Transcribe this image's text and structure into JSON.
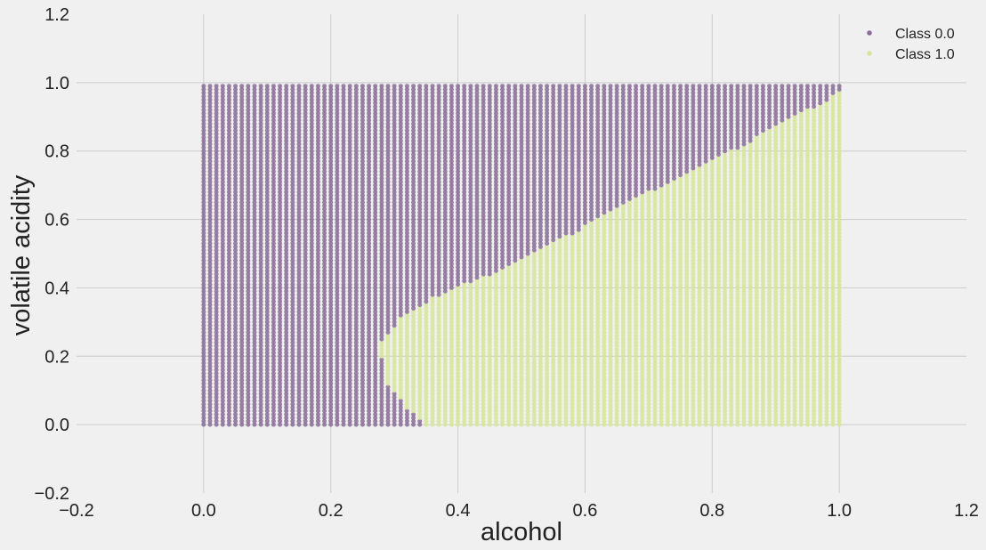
{
  "chart_data": {
    "type": "scatter",
    "title": "",
    "xlabel": "alcohol",
    "ylabel": "volatile acidity",
    "xlim": [
      -0.2,
      1.2
    ],
    "ylim": [
      -0.2,
      1.2
    ],
    "xticks": [
      "−0.2",
      "0.0",
      "0.2",
      "0.4",
      "0.6",
      "0.8",
      "1.0",
      "1.2"
    ],
    "yticks": [
      "−0.2",
      "0.0",
      "0.2",
      "0.4",
      "0.6",
      "0.8",
      "1.0",
      "1.2"
    ],
    "grid": true,
    "legend_position": "top-right",
    "grid_points": {
      "x_range": [
        0.0,
        1.0
      ],
      "y_range": [
        0.0,
        0.99
      ],
      "step": 0.01
    },
    "decision_boundary": [
      {
        "x": 0.35,
        "y": 0.0
      },
      {
        "x": 0.32,
        "y": 0.05
      },
      {
        "x": 0.29,
        "y": 0.12
      },
      {
        "x": 0.28,
        "y": 0.2
      },
      {
        "x": 0.28,
        "y": 0.24
      },
      {
        "x": 0.31,
        "y": 0.31
      },
      {
        "x": 0.36,
        "y": 0.37
      },
      {
        "x": 0.41,
        "y": 0.41
      },
      {
        "x": 0.48,
        "y": 0.46
      },
      {
        "x": 0.55,
        "y": 0.53
      },
      {
        "x": 0.6,
        "y": 0.58
      },
      {
        "x": 0.7,
        "y": 0.68
      },
      {
        "x": 0.8,
        "y": 0.77
      },
      {
        "x": 0.9,
        "y": 0.87
      },
      {
        "x": 1.0,
        "y": 0.97
      }
    ],
    "series": [
      {
        "name": "Class 0.0",
        "color": "#8a6d97"
      },
      {
        "name": "Class 1.0",
        "color": "#d6e599"
      }
    ]
  }
}
